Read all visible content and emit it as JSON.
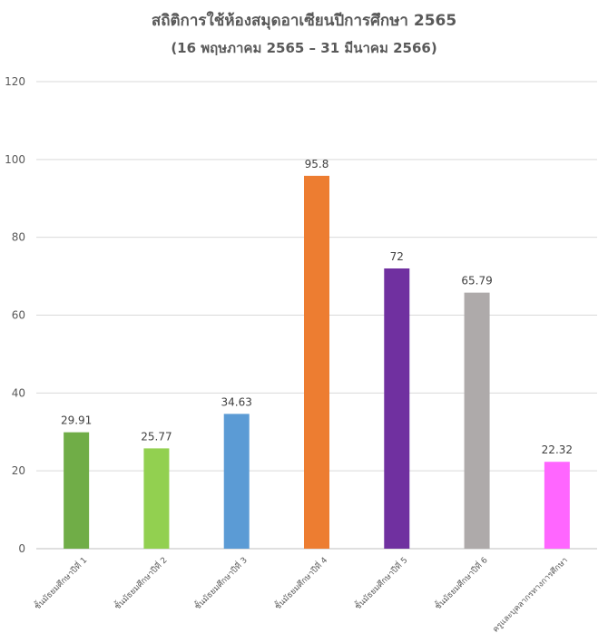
{
  "chart_data": {
    "type": "bar",
    "title": "สถิติการใช้ห้องสมุดอาเซียนปีการศึกษา 2565",
    "subtitle": "(16 พฤษภาคม 2565 – 31 มีนาคม 2566)",
    "xlabel": "",
    "ylabel": "",
    "ylim": [
      0,
      120
    ],
    "yticks": [
      0,
      20,
      40,
      60,
      80,
      100,
      120
    ],
    "grid": true,
    "legend": "none",
    "categories": [
      "ชั้นมัธยมศึกษาปีที่ 1",
      "ชั้นมัธยมศึกษาปีที่ 2",
      "ชั้นมัธยมศึกษาปีที่ 3",
      "ชั้นมัธยมศึกษาปีที่ 4",
      "ชั้นมัธยมศึกษาปีที่ 5",
      "ชั้นมัธยมศึกษาปีที่ 6",
      "ครูและบุคลากรทางการศึกษา"
    ],
    "values": [
      29.91,
      25.77,
      34.63,
      95.8,
      72,
      65.79,
      22.32
    ],
    "data_labels": [
      "29.91",
      "25.77",
      "34.63",
      "95.8",
      "72",
      "65.79",
      "22.32"
    ],
    "colors": [
      "#70ad47",
      "#92d050",
      "#5b9bd5",
      "#ed7d31",
      "#7030a0",
      "#aeaaaa",
      "#ff66ff"
    ]
  }
}
